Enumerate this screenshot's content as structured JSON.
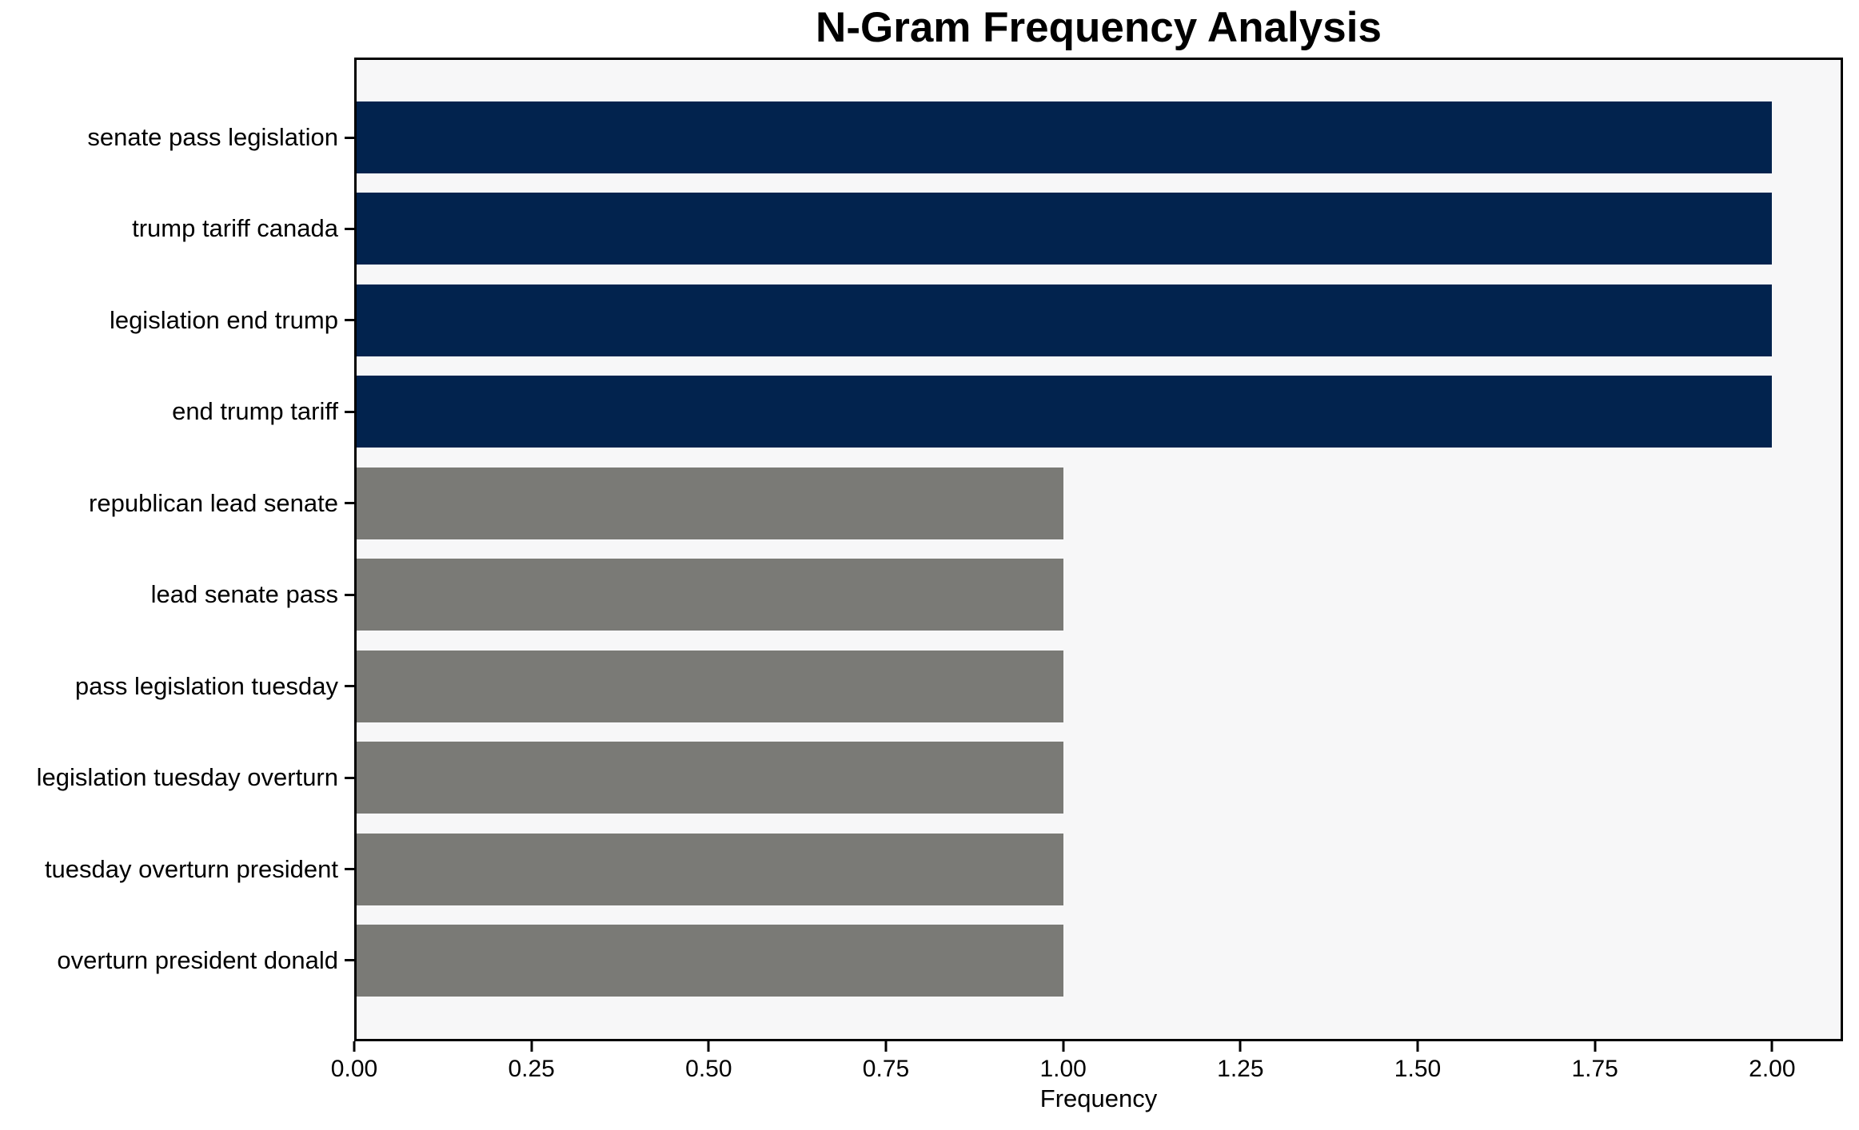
{
  "title": "N-Gram Frequency Analysis",
  "chart_data": {
    "type": "bar",
    "orientation": "horizontal",
    "title": "N-Gram Frequency Analysis",
    "xlabel": "Frequency",
    "ylabel": "",
    "categories": [
      "senate pass legislation",
      "trump tariff canada",
      "legislation end trump",
      "end trump tariff",
      "republican lead senate",
      "lead senate pass",
      "pass legislation tuesday",
      "legislation tuesday overturn",
      "tuesday overturn president",
      "overturn president donald"
    ],
    "values": [
      2,
      2,
      2,
      2,
      1,
      1,
      1,
      1,
      1,
      1
    ],
    "bar_colors": [
      "#02234e",
      "#02234e",
      "#02234e",
      "#02234e",
      "#7a7a76",
      "#7a7a76",
      "#7a7a76",
      "#7a7a76",
      "#7a7a76",
      "#7a7a76"
    ],
    "xlim": [
      0,
      2.1
    ],
    "xticks": [
      "0.00",
      "0.25",
      "0.50",
      "0.75",
      "1.00",
      "1.25",
      "1.50",
      "1.75",
      "2.00"
    ],
    "xtick_values": [
      0,
      0.25,
      0.5,
      0.75,
      1.0,
      1.25,
      1.5,
      1.75,
      2.0
    ],
    "grid": false,
    "legend": null,
    "colors": {
      "high_frequency_bar": "#02234e",
      "low_frequency_bar": "#7a7a76",
      "plot_background": "#f7f7f8",
      "figure_background": "#ffffff",
      "axis": "#000000"
    }
  }
}
